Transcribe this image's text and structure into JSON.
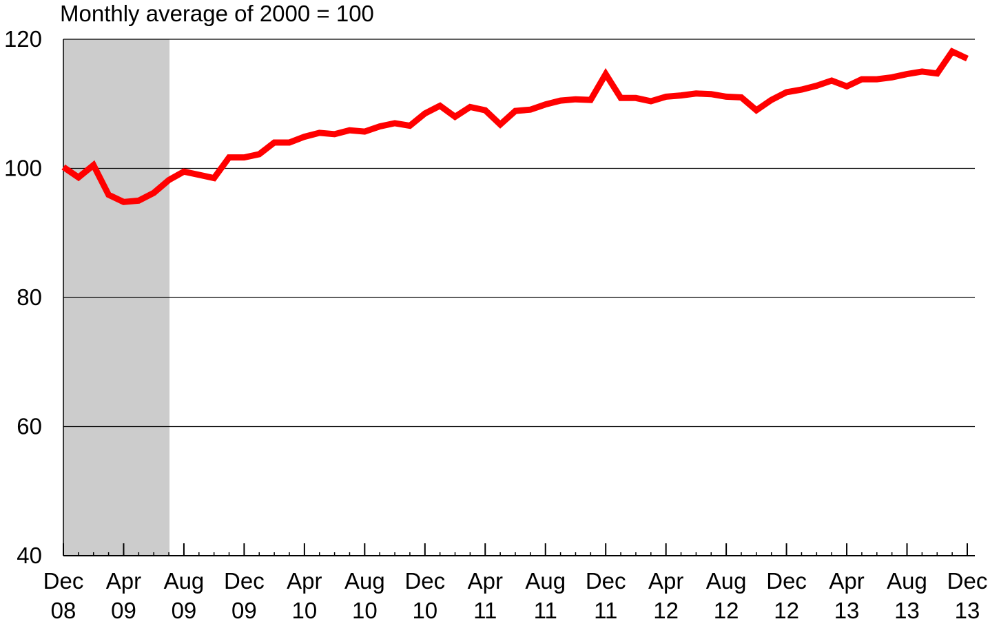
{
  "chart_data": {
    "type": "line",
    "title": "",
    "subtitle": "Monthly average of 2000 = 100",
    "xlabel": "",
    "ylabel": "",
    "ylim": [
      40,
      120
    ],
    "y_ticks": [
      40,
      60,
      80,
      100,
      120
    ],
    "grid": "horizontal",
    "legend": "none",
    "x_ticks": [
      {
        "month": "Dec",
        "year": "08",
        "index": 0
      },
      {
        "month": "Apr",
        "year": "09",
        "index": 4
      },
      {
        "month": "Aug",
        "year": "09",
        "index": 8
      },
      {
        "month": "Dec",
        "year": "09",
        "index": 12
      },
      {
        "month": "Apr",
        "year": "10",
        "index": 16
      },
      {
        "month": "Aug",
        "year": "10",
        "index": 20
      },
      {
        "month": "Dec",
        "year": "10",
        "index": 24
      },
      {
        "month": "Apr",
        "year": "11",
        "index": 28
      },
      {
        "month": "Aug",
        "year": "11",
        "index": 32
      },
      {
        "month": "Dec",
        "year": "11",
        "index": 36
      },
      {
        "month": "Apr",
        "year": "12",
        "index": 40
      },
      {
        "month": "Aug",
        "year": "12",
        "index": 44
      },
      {
        "month": "Dec",
        "year": "12",
        "index": 48
      },
      {
        "month": "Apr",
        "year": "13",
        "index": 52
      },
      {
        "month": "Aug",
        "year": "13",
        "index": 56
      },
      {
        "month": "Dec",
        "year": "13",
        "index": 60
      }
    ],
    "shaded_region": {
      "start_index": 0,
      "end_index": 7,
      "color": "#cccccc"
    },
    "series": [
      {
        "color": "#ff0000",
        "values": [
          100.2,
          98.6,
          100.5,
          95.9,
          94.8,
          95.0,
          96.2,
          98.2,
          99.5,
          99.0,
          98.5,
          101.7,
          101.7,
          102.2,
          104.0,
          104.0,
          104.9,
          105.5,
          105.3,
          105.9,
          105.7,
          106.5,
          107.0,
          106.6,
          108.5,
          109.7,
          108.0,
          109.5,
          109.0,
          106.8,
          108.9,
          109.1,
          109.9,
          110.5,
          110.7,
          110.6,
          114.6,
          110.9,
          110.9,
          110.4,
          111.1,
          111.3,
          111.6,
          111.5,
          111.1,
          111.0,
          109.0,
          110.6,
          111.8,
          112.2,
          112.8,
          113.6,
          112.7,
          113.8,
          113.8,
          114.1,
          114.6,
          115.0,
          114.7,
          118.1,
          117.0
        ]
      }
    ]
  }
}
